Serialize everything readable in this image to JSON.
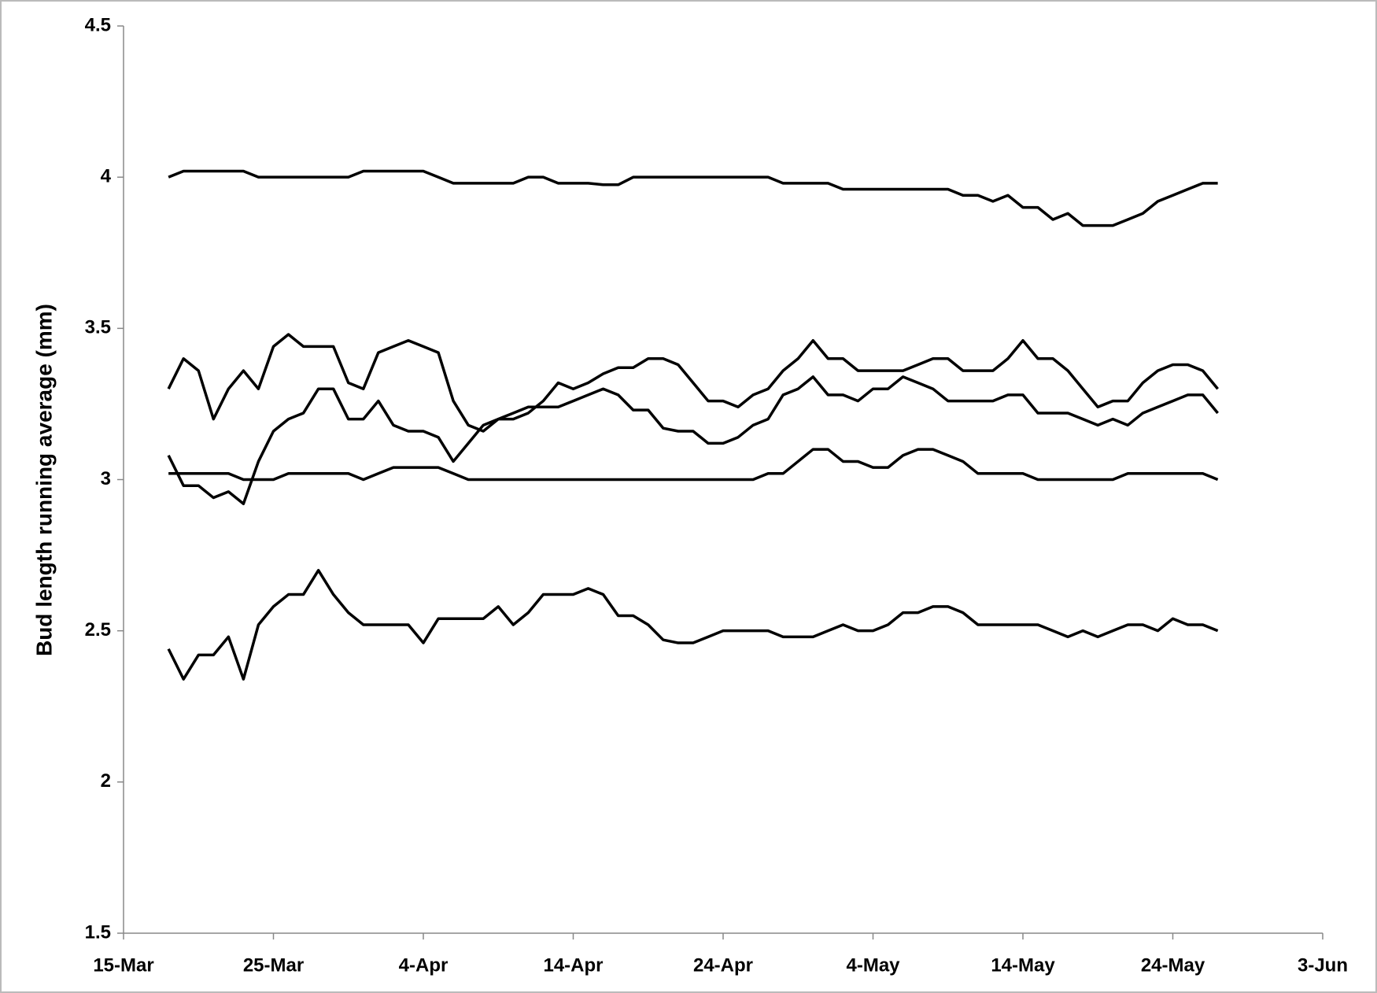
{
  "chart_data": {
    "type": "line",
    "y_label": "Bud length running average (mm)",
    "x": [
      "18-Mar",
      "19-Mar",
      "20-Mar",
      "21-Mar",
      "22-Mar",
      "23-Mar",
      "24-Mar",
      "25-Mar",
      "26-Mar",
      "27-Mar",
      "28-Mar",
      "29-Mar",
      "30-Mar",
      "31-Mar",
      "1-Apr",
      "2-Apr",
      "3-Apr",
      "4-Apr",
      "5-Apr",
      "6-Apr",
      "7-Apr",
      "8-Apr",
      "9-Apr",
      "10-Apr",
      "11-Apr",
      "12-Apr",
      "13-Apr",
      "14-Apr",
      "15-Apr",
      "16-Apr",
      "17-Apr",
      "18-Apr",
      "19-Apr",
      "20-Apr",
      "21-Apr",
      "22-Apr",
      "23-Apr",
      "24-Apr",
      "25-Apr",
      "26-Apr",
      "27-Apr",
      "28-Apr",
      "29-Apr",
      "30-Apr",
      "1-May",
      "2-May",
      "3-May",
      "4-May",
      "5-May",
      "6-May",
      "7-May",
      "8-May",
      "9-May",
      "10-May",
      "11-May",
      "12-May",
      "13-May",
      "14-May",
      "15-May",
      "16-May",
      "17-May",
      "18-May",
      "19-May",
      "20-May",
      "21-May",
      "22-May",
      "23-May",
      "24-May",
      "25-May",
      "26-May",
      "27-May"
    ],
    "series": [
      {
        "color": "#000000",
        "values": [
          4.0,
          4.02,
          4.02,
          4.02,
          4.02,
          4.02,
          4.0,
          4.0,
          4.0,
          4.0,
          4.0,
          4.0,
          4.0,
          4.02,
          4.02,
          4.02,
          4.02,
          4.02,
          4.0,
          3.98,
          3.98,
          3.98,
          3.98,
          3.98,
          4.0,
          4.0,
          3.98,
          3.98,
          3.98,
          3.975,
          3.975,
          4.0,
          4.0,
          4.0,
          4.0,
          4.0,
          4.0,
          4.0,
          4.0,
          4.0,
          4.0,
          3.98,
          3.98,
          3.98,
          3.98,
          3.96,
          3.96,
          3.96,
          3.96,
          3.96,
          3.96,
          3.96,
          3.96,
          3.94,
          3.94,
          3.92,
          3.94,
          3.9,
          3.9,
          3.86,
          3.88,
          3.84,
          3.84,
          3.84,
          3.86,
          3.88,
          3.92,
          3.94,
          3.96,
          3.98,
          3.98
        ]
      },
      {
        "color": "#000000",
        "values": [
          3.3,
          3.4,
          3.36,
          3.2,
          3.3,
          3.36,
          3.3,
          3.44,
          3.48,
          3.44,
          3.44,
          3.44,
          3.32,
          3.3,
          3.42,
          3.44,
          3.46,
          3.44,
          3.42,
          3.26,
          3.18,
          3.16,
          3.2,
          3.2,
          3.22,
          3.26,
          3.32,
          3.3,
          3.32,
          3.35,
          3.37,
          3.37,
          3.4,
          3.4,
          3.38,
          3.32,
          3.26,
          3.26,
          3.24,
          3.28,
          3.3,
          3.36,
          3.4,
          3.46,
          3.4,
          3.4,
          3.36,
          3.36,
          3.36,
          3.36,
          3.38,
          3.4,
          3.4,
          3.36,
          3.36,
          3.36,
          3.4,
          3.46,
          3.4,
          3.4,
          3.36,
          3.3,
          3.24,
          3.26,
          3.26,
          3.32,
          3.36,
          3.38,
          3.38,
          3.36,
          3.3
        ]
      },
      {
        "color": "#000000",
        "values": [
          3.08,
          2.98,
          2.98,
          2.94,
          2.96,
          2.92,
          3.06,
          3.16,
          3.2,
          3.22,
          3.3,
          3.3,
          3.2,
          3.2,
          3.26,
          3.18,
          3.16,
          3.16,
          3.14,
          3.06,
          3.12,
          3.18,
          3.2,
          3.22,
          3.24,
          3.24,
          3.24,
          3.26,
          3.28,
          3.3,
          3.28,
          3.23,
          3.23,
          3.17,
          3.16,
          3.16,
          3.12,
          3.12,
          3.14,
          3.18,
          3.2,
          3.28,
          3.3,
          3.34,
          3.28,
          3.28,
          3.26,
          3.3,
          3.3,
          3.34,
          3.32,
          3.3,
          3.26,
          3.26,
          3.26,
          3.26,
          3.28,
          3.28,
          3.22,
          3.22,
          3.22,
          3.2,
          3.18,
          3.2,
          3.18,
          3.22,
          3.24,
          3.26,
          3.28,
          3.28,
          3.22
        ]
      },
      {
        "color": "#000000",
        "values": [
          3.02,
          3.02,
          3.02,
          3.02,
          3.02,
          3.0,
          3.0,
          3.0,
          3.02,
          3.02,
          3.02,
          3.02,
          3.02,
          3.0,
          3.02,
          3.04,
          3.04,
          3.04,
          3.04,
          3.02,
          3.0,
          3.0,
          3.0,
          3.0,
          3.0,
          3.0,
          3.0,
          3.0,
          3.0,
          3.0,
          3.0,
          3.0,
          3.0,
          3.0,
          3.0,
          3.0,
          3.0,
          3.0,
          3.0,
          3.0,
          3.02,
          3.02,
          3.06,
          3.1,
          3.1,
          3.06,
          3.06,
          3.04,
          3.04,
          3.08,
          3.1,
          3.1,
          3.08,
          3.06,
          3.02,
          3.02,
          3.02,
          3.02,
          3.0,
          3.0,
          3.0,
          3.0,
          3.0,
          3.0,
          3.02,
          3.02,
          3.02,
          3.02,
          3.02,
          3.02,
          3.0
        ]
      },
      {
        "color": "#000000",
        "values": [
          2.44,
          2.34,
          2.42,
          2.42,
          2.48,
          2.34,
          2.52,
          2.58,
          2.62,
          2.62,
          2.7,
          2.62,
          2.56,
          2.52,
          2.52,
          2.52,
          2.52,
          2.46,
          2.54,
          2.54,
          2.54,
          2.54,
          2.58,
          2.52,
          2.56,
          2.62,
          2.62,
          2.62,
          2.64,
          2.62,
          2.55,
          2.55,
          2.52,
          2.47,
          2.46,
          2.46,
          2.48,
          2.5,
          2.5,
          2.5,
          2.5,
          2.48,
          2.48,
          2.48,
          2.5,
          2.52,
          2.5,
          2.5,
          2.52,
          2.56,
          2.56,
          2.58,
          2.58,
          2.56,
          2.52,
          2.52,
          2.52,
          2.52,
          2.52,
          2.5,
          2.48,
          2.5,
          2.48,
          2.5,
          2.52,
          2.52,
          2.5,
          2.54,
          2.52,
          2.52,
          2.5
        ]
      }
    ],
    "xlim": [
      "15-Mar",
      "3-Jun"
    ],
    "xticks": [
      "15-Mar",
      "25-Mar",
      "4-Apr",
      "14-Apr",
      "24-Apr",
      "4-May",
      "14-May",
      "24-May",
      "3-Jun"
    ],
    "ylim": [
      1.5,
      4.5
    ],
    "yticks": [
      1.5,
      2,
      2.5,
      3,
      3.5,
      4,
      4.5
    ],
    "grid": false
  }
}
